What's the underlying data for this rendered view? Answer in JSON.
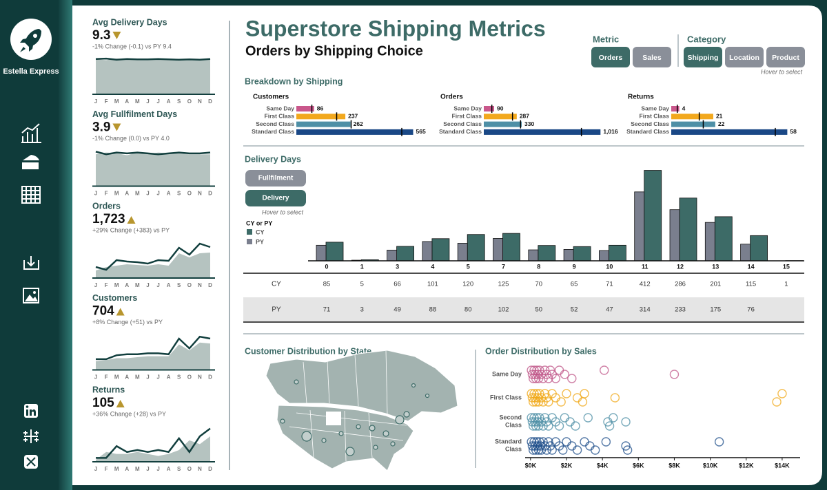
{
  "sidebar": {
    "brand": "Estella Express"
  },
  "kpis": {
    "months": [
      "J",
      "F",
      "M",
      "A",
      "M",
      "J",
      "J",
      "A",
      "S",
      "O",
      "N",
      "D"
    ],
    "items": [
      {
        "title": "Avg Delivery Days",
        "value": "9.3",
        "trend": "down",
        "change": "-1% Change (-0.1) vs PY 9.4",
        "cy": [
          9.5,
          9.6,
          9.3,
          9.5,
          9.4,
          9.4,
          9.5,
          9.4,
          9.3,
          9.4,
          9.3,
          9.5
        ],
        "py": [
          9.4,
          9.2,
          9.6,
          9.5,
          9.3,
          9.5,
          9.4,
          9.3,
          9.5,
          9.2,
          9.5,
          9.4
        ],
        "ylim": [
          0,
          10
        ]
      },
      {
        "title": "Avg Fullfilment Days",
        "value": "3.9",
        "trend": "down",
        "change": "-1% Change (0.0) vs PY 4.0",
        "cy": [
          3.9,
          3.6,
          3.8,
          3.7,
          3.8,
          3.7,
          3.6,
          3.7,
          3.8,
          3.7,
          3.7,
          3.8
        ],
        "py": [
          3.6,
          3.8,
          3.7,
          3.5,
          3.8,
          3.6,
          3.8,
          3.7,
          3.7,
          3.6,
          3.6,
          3.6
        ],
        "ylim": [
          0,
          4.2
        ]
      },
      {
        "title": "Orders",
        "value": "1,723",
        "trend": "up",
        "change": "+29% Change (+383) vs PY",
        "cy": [
          80,
          60,
          130,
          120,
          115,
          105,
          130,
          125,
          220,
          170,
          250,
          225
        ],
        "py": [
          55,
          80,
          90,
          100,
          95,
          90,
          100,
          90,
          180,
          150,
          180,
          185
        ],
        "ylim": [
          0,
          270
        ]
      },
      {
        "title": "Customers",
        "value": "704",
        "trend": "up",
        "change": "+8% Change (+51) vs PY",
        "cy": [
          55,
          55,
          75,
          80,
          80,
          85,
          85,
          80,
          160,
          110,
          170,
          160
        ],
        "py": [
          45,
          50,
          60,
          60,
          65,
          70,
          70,
          70,
          130,
          100,
          140,
          135
        ],
        "ylim": [
          0,
          190
        ]
      },
      {
        "title": "Returns",
        "value": "105",
        "trend": "up",
        "change": "+36% Change (+28) vs PY",
        "cy": [
          2,
          2,
          8,
          5,
          6,
          5,
          6,
          5,
          12,
          5,
          13,
          17
        ],
        "py": [
          1,
          5,
          4,
          4,
          5,
          4,
          3,
          4,
          6,
          11,
          9,
          13
        ],
        "ylim": [
          0,
          19
        ]
      }
    ]
  },
  "header": {
    "title": "Superstore Shipping Metrics",
    "subtitle": "Orders by Shipping Choice"
  },
  "filters": {
    "metric": {
      "label": "Metric",
      "options": [
        "Orders",
        "Sales"
      ],
      "active": 0
    },
    "category": {
      "label": "Category",
      "options": [
        "Shipping",
        "Location",
        "Product"
      ],
      "active": 0
    },
    "hint": "Hover to select"
  },
  "breakdown": {
    "title": "Breakdown by Shipping",
    "categories": [
      "Same Day",
      "First Class",
      "Second Class",
      "Standard Class"
    ],
    "colors": [
      "#c9578b",
      "#f2a81d",
      "#4e8fa6",
      "#1a4886"
    ],
    "panels": [
      {
        "title": "Customers",
        "values": [
          86,
          237,
          262,
          565
        ],
        "py": [
          75,
          195,
          265,
          510
        ],
        "xlim": [
          0,
          600
        ]
      },
      {
        "title": "Orders",
        "values": [
          90,
          287,
          330,
          1016
        ],
        "value_labels": [
          "90",
          "287",
          "330",
          "1,016"
        ],
        "py": [
          70,
          250,
          320,
          850
        ],
        "xlim": [
          0,
          1080
        ]
      },
      {
        "title": "Returns",
        "values": [
          4,
          21,
          22,
          58
        ],
        "py": [
          3,
          14,
          16,
          52
        ],
        "xlim": [
          0,
          62
        ]
      }
    ]
  },
  "map": {
    "title": "Customer Distribution by State"
  },
  "chart_data": [
    {
      "type": "bar",
      "title": "Delivery Days",
      "buttons": [
        "Fullfilment",
        "Delivery"
      ],
      "active_button": 1,
      "hint": "Hover to select",
      "legend_title": "CY or PY",
      "categories": [
        "0",
        "1",
        "3",
        "4",
        "5",
        "7",
        "8",
        "9",
        "10",
        "11",
        "12",
        "13",
        "14",
        "15"
      ],
      "series": [
        {
          "name": "CY",
          "color": "#3d6b67",
          "values": [
            85,
            5,
            66,
            101,
            120,
            125,
            70,
            65,
            71,
            412,
            286,
            201,
            115,
            1
          ]
        },
        {
          "name": "PY",
          "color": "#7a7f8e",
          "values": [
            71,
            3,
            49,
            88,
            80,
            102,
            50,
            52,
            47,
            314,
            233,
            175,
            76,
            null
          ]
        }
      ],
      "ylim": [
        0,
        420
      ]
    },
    {
      "type": "scatter",
      "title": "Order Distribution by Sales",
      "categories": [
        "Same Day",
        "First Class",
        "Second Class",
        "Standard Class"
      ],
      "series": [
        {
          "name": "Same Day",
          "color": "#c0588a",
          "values": [
            50,
            100,
            150,
            200,
            250,
            300,
            350,
            400,
            450,
            500,
            600,
            700,
            800,
            900,
            1000,
            1100,
            1200,
            1400,
            1600,
            1900,
            2300,
            4100,
            8000
          ]
        },
        {
          "name": "First Class",
          "color": "#f0a818",
          "values": [
            50,
            100,
            150,
            200,
            250,
            300,
            350,
            400,
            450,
            500,
            600,
            700,
            800,
            900,
            1000,
            1200,
            1400,
            1700,
            2000,
            2600,
            2900,
            3000,
            4700,
            13700,
            14000
          ]
        },
        {
          "name": "Second Class",
          "color": "#4e8fa6",
          "values": [
            50,
            100,
            150,
            200,
            250,
            300,
            350,
            400,
            450,
            500,
            600,
            700,
            800,
            900,
            1000,
            1200,
            1400,
            1600,
            1900,
            2200,
            2500,
            3200,
            4300,
            4400,
            4600,
            5300
          ]
        },
        {
          "name": "Standard Class",
          "color": "#1d4e89",
          "values": [
            50,
            100,
            150,
            200,
            250,
            300,
            350,
            400,
            450,
            500,
            550,
            600,
            700,
            800,
            900,
            1000,
            1100,
            1200,
            1400,
            1600,
            1800,
            2000,
            2300,
            2600,
            3000,
            3300,
            3600,
            4200,
            5300,
            5400,
            10500
          ]
        }
      ],
      "xlim": [
        -300,
        15000
      ],
      "xticks": [
        {
          "value": 0,
          "label": "$0K"
        },
        {
          "value": 2000,
          "label": "$2K"
        },
        {
          "value": 4000,
          "label": "$4K"
        },
        {
          "value": 6000,
          "label": "$6K"
        },
        {
          "value": 8000,
          "label": "$8K"
        },
        {
          "value": 10000,
          "label": "$10K"
        },
        {
          "value": 12000,
          "label": "$12K"
        },
        {
          "value": 14000,
          "label": "$14K"
        }
      ]
    }
  ]
}
